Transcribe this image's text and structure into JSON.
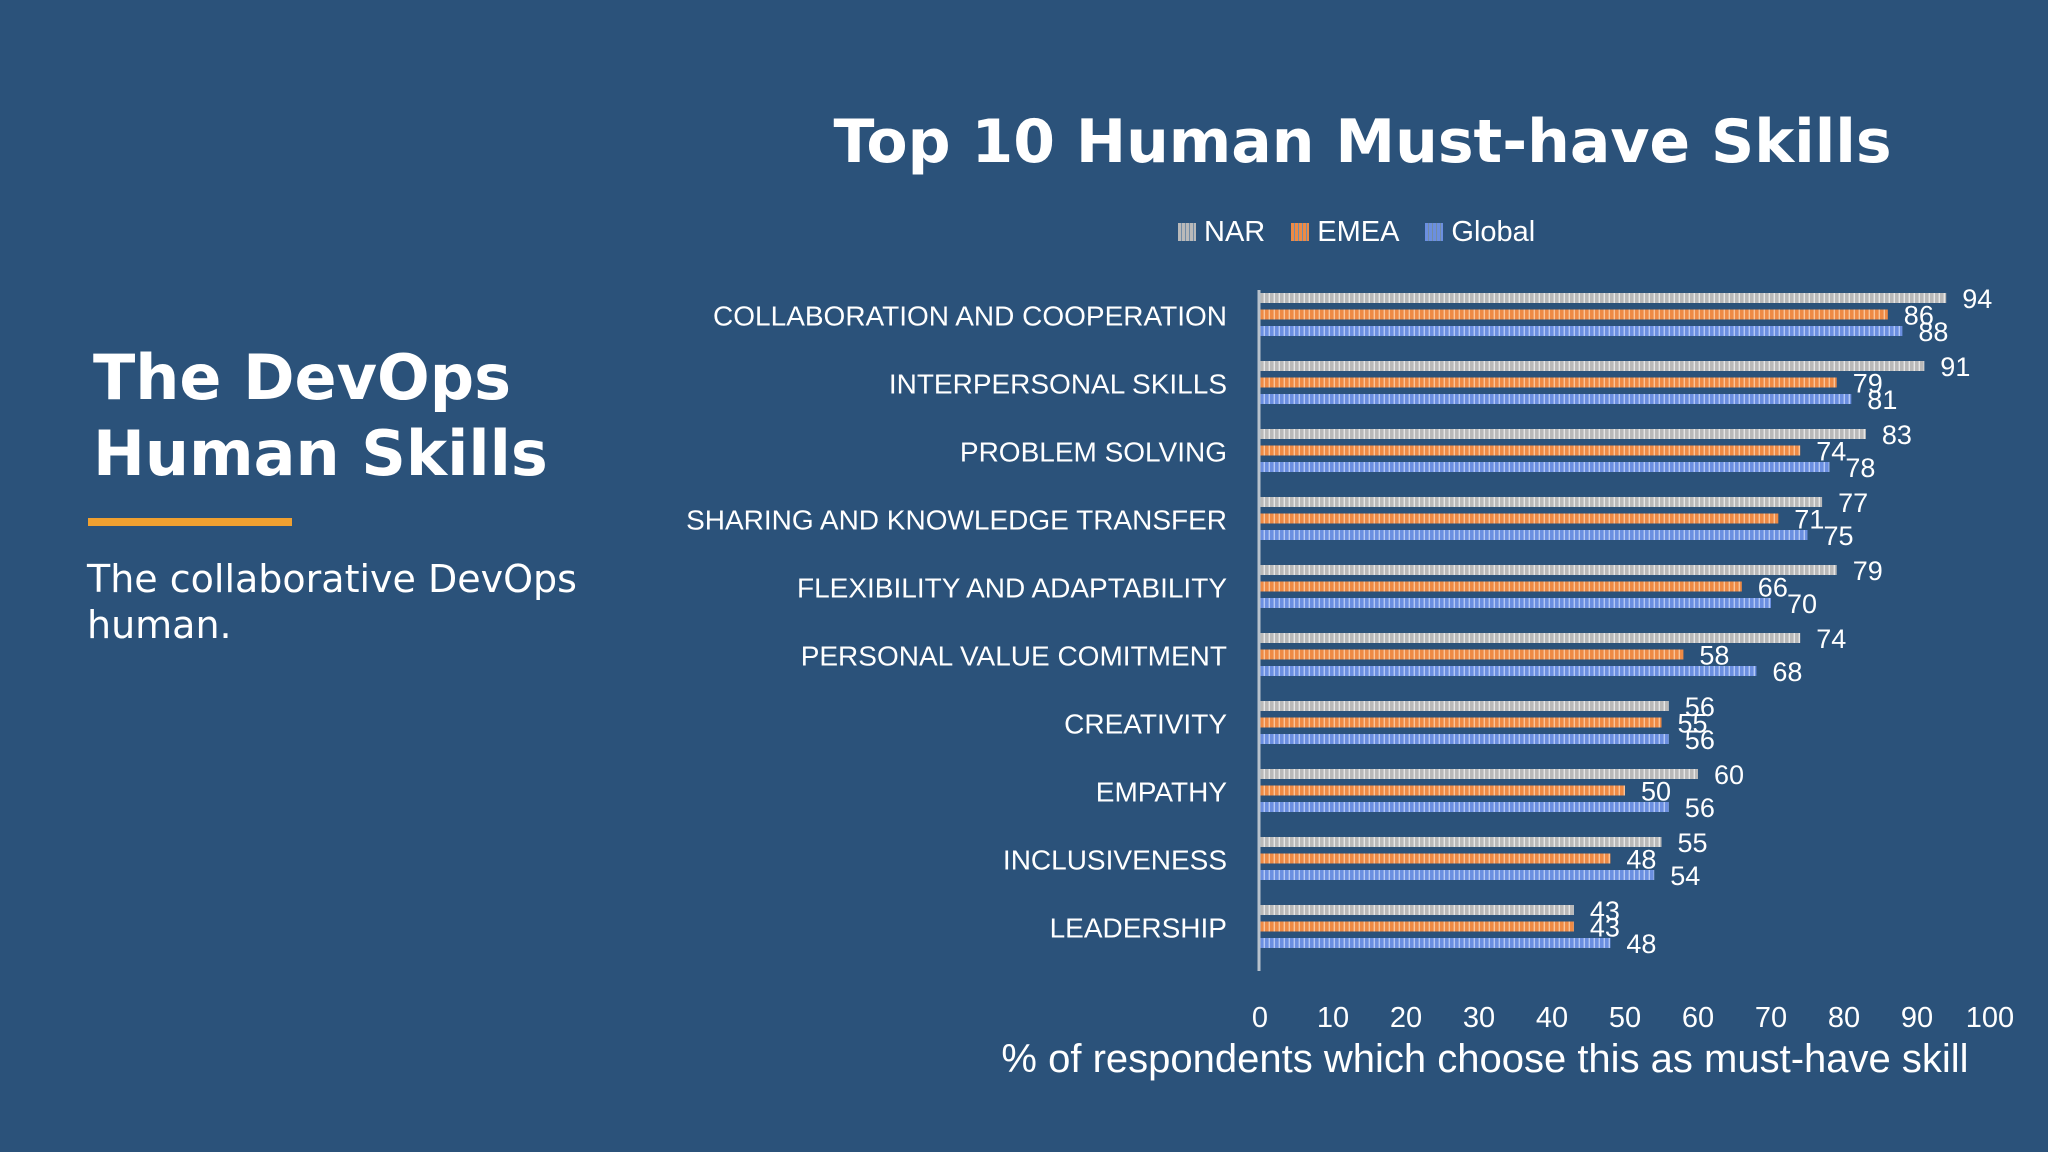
{
  "slide": {
    "title_line1": "The DevOps",
    "title_line2": "Human Skills",
    "subtitle": "The collaborative DevOps human.",
    "accent_color": "#f0a030",
    "background_color": "#2b527a"
  },
  "chart_data": {
    "type": "bar",
    "orientation": "horizontal",
    "title": "Top 10 Human Must-have Skills",
    "xlabel": "% of respondents which choose this as must-have skill",
    "ylabel": "",
    "xlim": [
      0,
      100
    ],
    "x_ticks": [
      0,
      10,
      20,
      30,
      40,
      50,
      60,
      70,
      80,
      90,
      100
    ],
    "grid": false,
    "legend_position": "top",
    "categories": [
      "COLLABORATION AND COOPERATION",
      "INTERPERSONAL SKILLS",
      "PROBLEM SOLVING",
      "SHARING AND KNOWLEDGE TRANSFER",
      "FLEXIBILITY AND ADAPTABILITY",
      "PERSONAL VALUE COMITMENT",
      "CREATIVITY",
      "EMPATHY",
      "INCLUSIVENESS",
      "LEADERSHIP"
    ],
    "series": [
      {
        "name": "NAR",
        "color": "#b9b9b9",
        "values": [
          94,
          91,
          83,
          77,
          79,
          74,
          56,
          60,
          55,
          43
        ]
      },
      {
        "name": "EMEA",
        "color": "#ee8a45",
        "values": [
          86,
          79,
          74,
          71,
          66,
          58,
          55,
          50,
          48,
          43
        ]
      },
      {
        "name": "Global",
        "color": "#6b8fe0",
        "values": [
          88,
          81,
          78,
          75,
          70,
          68,
          56,
          56,
          54,
          48
        ]
      }
    ]
  }
}
